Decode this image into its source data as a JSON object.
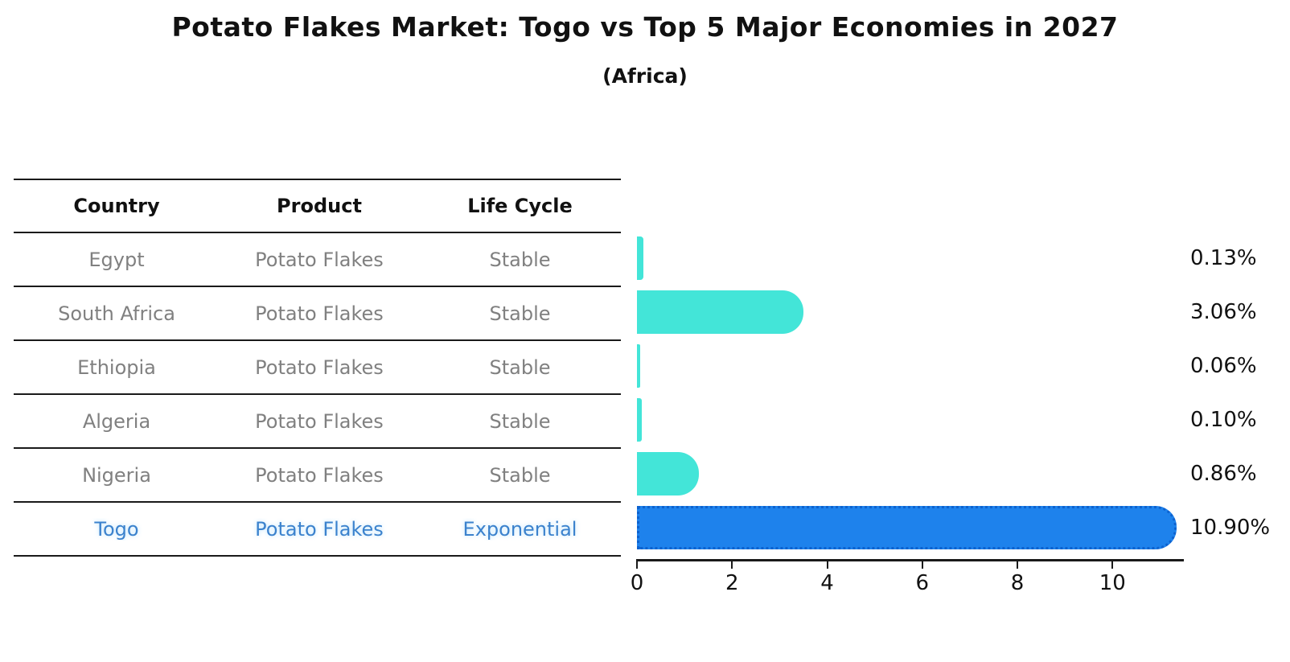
{
  "header": {
    "title": "Potato Flakes Market: Togo vs Top 5 Major Economies in 2027",
    "subtitle": "(Africa)"
  },
  "table": {
    "columns": [
      "Country",
      "Product",
      "Life Cycle"
    ],
    "rows": [
      {
        "country": "Egypt",
        "product": "Potato Flakes",
        "life_cycle": "Stable",
        "highlight": false
      },
      {
        "country": "South Africa",
        "product": "Potato Flakes",
        "life_cycle": "Stable",
        "highlight": false
      },
      {
        "country": "Ethiopia",
        "product": "Potato Flakes",
        "life_cycle": "Stable",
        "highlight": false
      },
      {
        "country": "Algeria",
        "product": "Potato Flakes",
        "life_cycle": "Stable",
        "highlight": false
      },
      {
        "country": "Nigeria",
        "product": "Potato Flakes",
        "life_cycle": "Stable",
        "highlight": false
      },
      {
        "country": "Togo",
        "product": "Potato Flakes",
        "life_cycle": "Exponential",
        "highlight": true
      }
    ]
  },
  "chart_data": {
    "type": "bar",
    "orientation": "horizontal",
    "title": "Potato Flakes Market: Togo vs Top 5 Major Economies in 2027",
    "subtitle": "(Africa)",
    "categories": [
      "Egypt",
      "South Africa",
      "Ethiopia",
      "Algeria",
      "Nigeria",
      "Togo"
    ],
    "values": [
      0.13,
      3.06,
      0.06,
      0.1,
      0.86,
      10.9
    ],
    "value_labels": [
      "0.13%",
      "3.06%",
      "0.06%",
      "0.10%",
      "0.86%",
      "10.90%"
    ],
    "x_ticks": [
      0,
      2,
      4,
      6,
      8,
      10
    ],
    "xlim": [
      0,
      11.5
    ],
    "grid": false,
    "legend": "none",
    "highlight_index": 5,
    "colors": {
      "bar": "#43e5d8",
      "highlight_bar": "#1e82ec",
      "highlight_border": "#0d62cf",
      "row_text": "#808080",
      "highlight_text": "#3b82cd",
      "axis": "#1a1a1a"
    }
  }
}
